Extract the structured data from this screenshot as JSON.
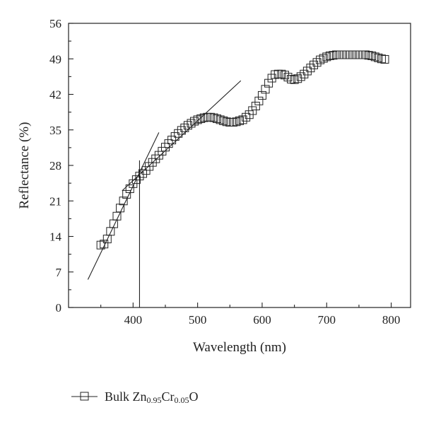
{
  "chart_data": {
    "type": "scatter",
    "title": "",
    "xlabel": "Wavelength (nm)",
    "ylabel": "Reflectance (%)",
    "xlim": [
      300,
      830
    ],
    "ylim": [
      0,
      56
    ],
    "xticks": [
      400,
      500,
      600,
      700,
      800
    ],
    "yticks": [
      0,
      7,
      14,
      21,
      28,
      35,
      42,
      49,
      56
    ],
    "grid": false,
    "legend_position": "bottom-left",
    "series": [
      {
        "name_parts": [
          "Bulk Zn",
          "0.95",
          "Cr",
          "0.05",
          "O"
        ],
        "marker": "square-open",
        "color": "#222222",
        "x": [
          350,
          355,
          360,
          365,
          370,
          375,
          380,
          385,
          390,
          395,
          400,
          405,
          410,
          415,
          420,
          425,
          430,
          435,
          440,
          445,
          450,
          455,
          460,
          465,
          470,
          475,
          480,
          485,
          490,
          495,
          500,
          505,
          510,
          515,
          520,
          525,
          530,
          535,
          540,
          545,
          550,
          555,
          560,
          565,
          570,
          575,
          580,
          585,
          590,
          595,
          600,
          605,
          610,
          615,
          620,
          625,
          630,
          635,
          640,
          645,
          650,
          655,
          660,
          665,
          670,
          675,
          680,
          685,
          690,
          695,
          700,
          705,
          710,
          715,
          720,
          725,
          730,
          735,
          740,
          745,
          750,
          755,
          760,
          765,
          770,
          775,
          780,
          785,
          790
        ],
        "y": [
          12.3,
          12.5,
          13.5,
          15.0,
          16.5,
          18.0,
          19.6,
          21.0,
          22.3,
          23.4,
          24.4,
          25.2,
          25.9,
          26.4,
          27.0,
          27.8,
          28.6,
          29.3,
          30.0,
          30.8,
          31.6,
          32.3,
          33.0,
          33.7,
          34.3,
          34.9,
          35.4,
          35.9,
          36.3,
          36.7,
          37.0,
          37.2,
          37.4,
          37.5,
          37.5,
          37.4,
          37.2,
          37.0,
          36.8,
          36.6,
          36.5,
          36.5,
          36.6,
          36.8,
          37.0,
          37.5,
          38.0,
          38.8,
          39.7,
          40.7,
          41.8,
          43.0,
          44.2,
          45.2,
          45.9,
          46.0,
          46.0,
          45.8,
          45.4,
          45.0,
          44.9,
          45.1,
          45.5,
          46.0,
          46.6,
          47.2,
          47.8,
          48.3,
          48.8,
          49.1,
          49.4,
          49.6,
          49.7,
          49.8,
          49.8,
          49.8,
          49.8,
          49.8,
          49.8,
          49.8,
          49.8,
          49.8,
          49.8,
          49.7,
          49.6,
          49.4,
          49.2,
          49.0,
          48.9
        ]
      }
    ],
    "tangent_lines": [
      {
        "x": [
          330,
          440
        ],
        "y": [
          5.5,
          34.5
        ]
      },
      {
        "x": [
          383,
          567
        ],
        "y": [
          23.0,
          44.7
        ]
      }
    ],
    "vertical_line": {
      "x": 410,
      "y": [
        0,
        29
      ]
    }
  }
}
